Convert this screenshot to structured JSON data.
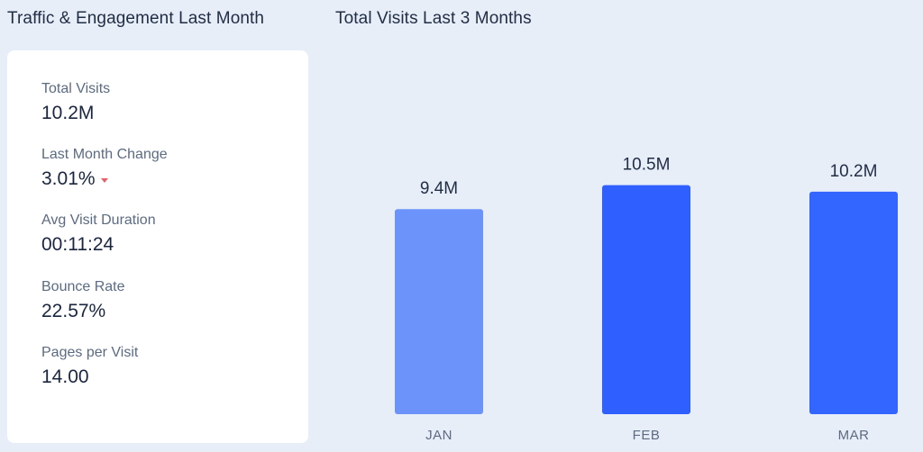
{
  "left_panel": {
    "title": "Traffic & Engagement Last Month",
    "metrics": [
      {
        "label": "Total Visits",
        "value": "10.2M"
      },
      {
        "label": "Last Month Change",
        "value": "3.01%",
        "trend": "down"
      },
      {
        "label": "Avg Visit Duration",
        "value": "00:11:24"
      },
      {
        "label": "Bounce Rate",
        "value": "22.57%"
      },
      {
        "label": "Pages per Visit",
        "value": "14.00"
      }
    ]
  },
  "right_panel": {
    "title": "Total Visits Last 3 Months"
  },
  "colors": {
    "background": "#e8eef8",
    "card": "#ffffff",
    "bar_light": "#6b93fa",
    "bar_dark": "#2f5fff",
    "bar_mid": "#3366ff",
    "trend_down": "#e8606a"
  },
  "chart_data": {
    "type": "bar",
    "categories": [
      "JAN",
      "FEB",
      "MAR"
    ],
    "values": [
      9.4,
      10.5,
      10.2
    ],
    "data_labels": [
      "9.4M",
      "10.5M",
      "10.2M"
    ],
    "ylim": [
      0,
      13
    ],
    "bar_colors": [
      "#6b93fa",
      "#2f5fff",
      "#3366ff"
    ],
    "grid": false,
    "title": "",
    "xlabel": "",
    "ylabel": ""
  }
}
